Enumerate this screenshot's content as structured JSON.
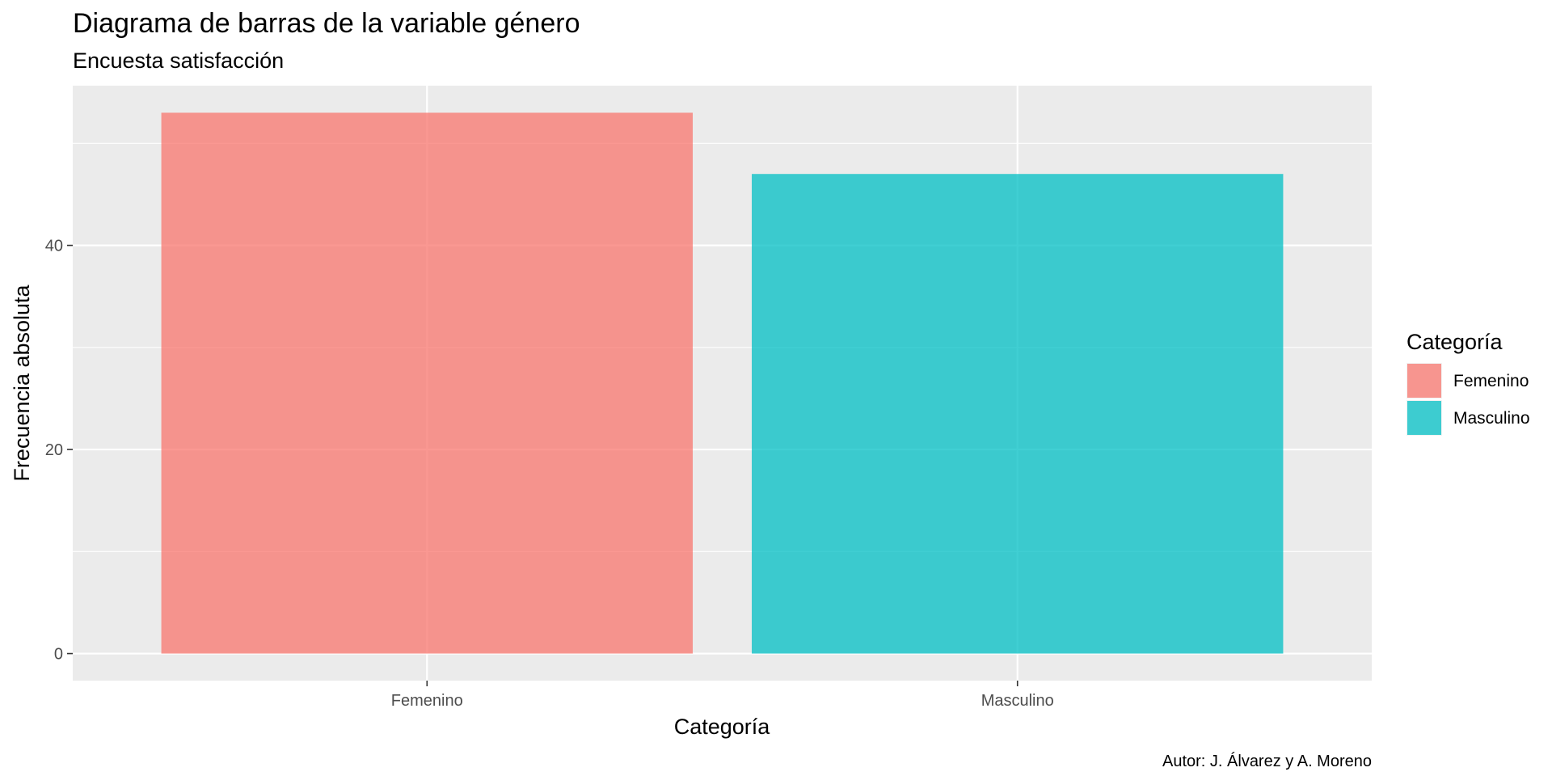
{
  "chart_data": {
    "type": "bar",
    "title": "Diagrama de barras de la variable género",
    "subtitle": "Encuesta satisfacción",
    "xlabel": "Categoría",
    "ylabel": "Frecuencia absoluta",
    "caption": "Autor: J. Álvarez y A. Moreno",
    "categories": [
      "Femenino",
      "Masculino"
    ],
    "values": [
      53,
      47
    ],
    "colors": [
      "#F8766D",
      "#00BFC4"
    ],
    "ylim": [
      -2.65,
      55.65
    ],
    "yticks": [
      0,
      20,
      40
    ],
    "ytick_labels": [
      "0",
      "20",
      "40"
    ],
    "ygrid_minor": [
      10,
      30,
      50
    ],
    "grid": true,
    "legend": {
      "title": "Categoría",
      "position": "right",
      "items": [
        "Femenino",
        "Masculino"
      ]
    }
  }
}
